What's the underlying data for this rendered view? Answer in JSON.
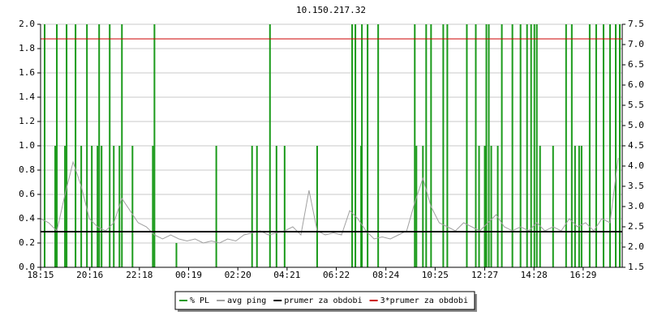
{
  "chart_data": {
    "type": "line",
    "title": "10.150.217.32",
    "xlim": [
      0,
      1430
    ],
    "xticks": [
      {
        "value": 0,
        "label": "18:15"
      },
      {
        "value": 121,
        "label": "20:16"
      },
      {
        "value": 243,
        "label": "22:18"
      },
      {
        "value": 364,
        "label": "00:19"
      },
      {
        "value": 485,
        "label": "02:20"
      },
      {
        "value": 606,
        "label": "04:21"
      },
      {
        "value": 727,
        "label": "06:22"
      },
      {
        "value": 849,
        "label": "08:24"
      },
      {
        "value": 970,
        "label": "10:25"
      },
      {
        "value": 1092,
        "label": "12:27"
      },
      {
        "value": 1213,
        "label": "14:28"
      },
      {
        "value": 1334,
        "label": "16:29"
      }
    ],
    "ylim": [
      0,
      2
    ],
    "yticks": [
      {
        "value": 0,
        "label": "0.0"
      },
      0.2,
      0.4,
      0.6,
      0.8,
      {
        "value": 1,
        "label": "1.0"
      },
      1.2,
      1.4,
      1.6,
      1.8,
      {
        "value": 2,
        "label": "2.0"
      }
    ],
    "y2lim": [
      1.5,
      7.5
    ],
    "y2ticks": [
      1.5,
      {
        "value": 2,
        "label": "2.0"
      },
      2.5,
      {
        "value": 3,
        "label": "3.0"
      },
      3.5,
      {
        "value": 4,
        "label": "4.0"
      },
      4.5,
      {
        "value": 5,
        "label": "5.0"
      },
      5.5,
      {
        "value": 6,
        "label": "6.0"
      },
      6.5,
      {
        "value": 7,
        "label": "7.0"
      },
      7.5
    ],
    "grid": true,
    "legend": "bottom",
    "series": [
      {
        "name": "% PL",
        "type": "bar",
        "color": "#1a9a1a",
        "x": [
          10,
          40,
          64,
          86,
          114,
          144,
          170,
          200,
          280,
          564,
          766,
          774,
          790,
          804,
          830,
          920,
          948,
          960,
          990,
          1000,
          1048,
          1070,
          1096,
          1102,
          1134,
          1160,
          1180,
          1196,
          1206,
          1214,
          1220,
          1292,
          1306,
          1350,
          1366,
          1384,
          1400,
          1414,
          1424,
          36,
          60,
          100,
          126,
          140,
          150,
          180,
          194,
          226,
          276,
          432,
          520,
          532,
          580,
          600,
          680,
          788,
          924,
          940,
          1078,
          1092,
          1108,
          1124,
          1228,
          1260,
          1314,
          1324,
          1330,
          334
        ],
        "values": [
          2,
          2,
          2,
          2,
          2,
          2,
          2,
          2,
          2,
          2,
          2,
          2,
          2,
          2,
          2,
          2,
          2,
          2,
          2,
          2,
          2,
          2,
          2,
          2,
          2,
          2,
          2,
          2,
          2,
          2,
          2,
          2,
          2,
          2,
          2,
          2,
          2,
          2,
          2,
          1,
          1,
          1,
          1,
          1,
          1,
          1,
          1,
          1,
          1,
          1,
          1,
          1,
          1,
          1,
          1,
          1,
          1,
          1,
          1,
          1,
          1,
          1,
          1,
          1,
          1,
          1,
          1,
          0.2
        ]
      },
      {
        "name": "avg ping",
        "type": "line",
        "axis": "y2",
        "color": "#a0a0a0",
        "x": [
          0,
          20,
          40,
          60,
          80,
          100,
          120,
          140,
          160,
          180,
          200,
          220,
          240,
          260,
          280,
          300,
          320,
          340,
          360,
          380,
          400,
          420,
          440,
          460,
          480,
          500,
          520,
          540,
          560,
          580,
          600,
          620,
          640,
          660,
          680,
          700,
          720,
          740,
          760,
          780,
          800,
          820,
          840,
          860,
          880,
          900,
          920,
          940,
          960,
          980,
          1000,
          1020,
          1040,
          1060,
          1080,
          1100,
          1120,
          1140,
          1160,
          1180,
          1200,
          1220,
          1240,
          1260,
          1280,
          1300,
          1320,
          1340,
          1360,
          1380,
          1400,
          1420
        ],
        "values": [
          2.7,
          2.6,
          2.4,
          3.3,
          4.1,
          3.5,
          2.7,
          2.5,
          2.4,
          2.6,
          3.2,
          2.9,
          2.6,
          2.5,
          2.3,
          2.2,
          2.3,
          2.2,
          2.15,
          2.2,
          2.1,
          2.15,
          2.1,
          2.2,
          2.15,
          2.3,
          2.35,
          2.4,
          2.3,
          2.35,
          2.4,
          2.5,
          2.3,
          3.4,
          2.4,
          2.3,
          2.35,
          2.3,
          2.9,
          2.7,
          2.4,
          2.2,
          2.25,
          2.2,
          2.3,
          2.4,
          3.1,
          3.7,
          3.0,
          2.6,
          2.5,
          2.4,
          2.6,
          2.5,
          2.4,
          2.6,
          2.8,
          2.5,
          2.4,
          2.5,
          2.4,
          2.6,
          2.4,
          2.5,
          2.4,
          2.7,
          2.5,
          2.6,
          2.4,
          2.7,
          2.6,
          4.2
        ]
      },
      {
        "name": "prumer za obdobi",
        "type": "hline",
        "axis": "y2",
        "color": "#000000",
        "value": 2.38
      },
      {
        "name": "3*prumer za obdobi",
        "type": "hline",
        "axis": "y2",
        "color": "#cc0000",
        "value": 7.14
      }
    ]
  }
}
